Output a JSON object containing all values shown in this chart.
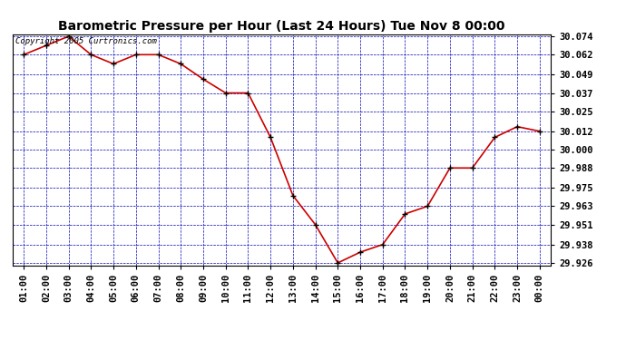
{
  "title": "Barometric Pressure per Hour (Last 24 Hours) Tue Nov 8 00:00",
  "copyright": "Copyright 2005 Curtronics.com",
  "hours": [
    "01:00",
    "02:00",
    "03:00",
    "04:00",
    "05:00",
    "06:00",
    "07:00",
    "08:00",
    "09:00",
    "10:00",
    "11:00",
    "12:00",
    "13:00",
    "14:00",
    "15:00",
    "16:00",
    "17:00",
    "18:00",
    "19:00",
    "20:00",
    "21:00",
    "22:00",
    "23:00",
    "00:00"
  ],
  "x_indices": [
    1,
    2,
    3,
    4,
    5,
    6,
    7,
    8,
    9,
    10,
    11,
    12,
    13,
    14,
    15,
    16,
    17,
    18,
    19,
    20,
    21,
    22,
    23,
    24
  ],
  "pressures": [
    30.062,
    30.068,
    30.074,
    30.062,
    30.056,
    30.062,
    30.062,
    30.056,
    30.046,
    30.037,
    30.037,
    30.008,
    29.97,
    29.951,
    29.926,
    29.933,
    29.938,
    29.958,
    29.963,
    29.988,
    29.988,
    30.008,
    30.015,
    30.012
  ],
  "ylim_min": 29.9245,
  "ylim_max": 30.0755,
  "yticks": [
    29.926,
    29.938,
    29.951,
    29.963,
    29.975,
    29.988,
    30.0,
    30.012,
    30.025,
    30.037,
    30.049,
    30.062,
    30.074
  ],
  "line_color": "#cc0000",
  "marker_color": "#000000",
  "bg_color": "#ffffff",
  "plot_bg_color": "#ffffff",
  "grid_color": "#0000bb",
  "title_color": "#000000",
  "title_fontsize": 10,
  "copyright_fontsize": 6.5,
  "tick_fontsize": 7.5,
  "ytick_fontsize": 7.5
}
